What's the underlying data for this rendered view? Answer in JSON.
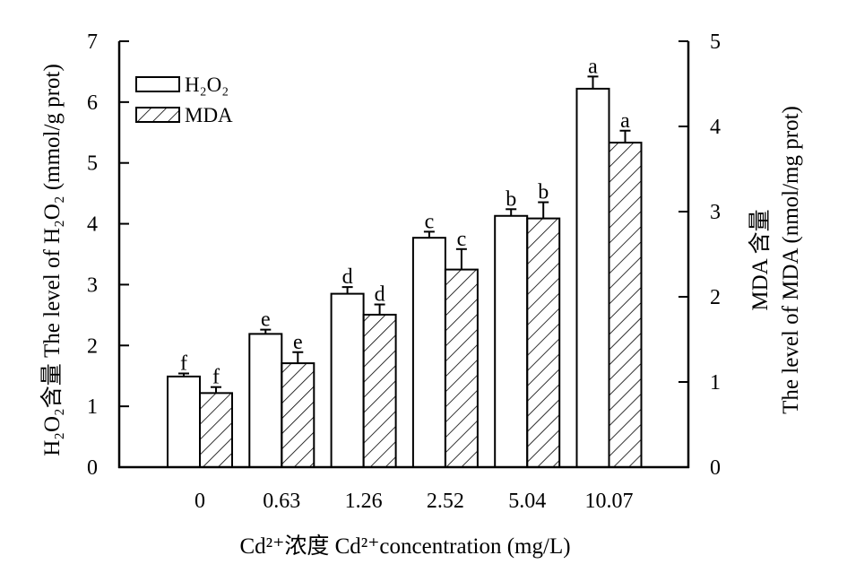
{
  "chart_data": {
    "type": "bar",
    "categories": [
      "0",
      "0.63",
      "1.26",
      "2.52",
      "5.04",
      "10.07"
    ],
    "xlabel": "Cd²⁺浓度 Cd²⁺concentration (mg/L)",
    "ylabel_left": "H₂O₂含量 The level of H₂O₂ (mmol/g prot)",
    "ylabel_right": [
      "MDA 含量",
      "The level of MDA (nmol/mg prot)"
    ],
    "ylim_left": [
      0,
      7
    ],
    "ylim_right": [
      0,
      5
    ],
    "yticks_left": [
      "0",
      "1",
      "2",
      "3",
      "4",
      "5",
      "6",
      "7"
    ],
    "yticks_right": [
      "0",
      "1",
      "2",
      "3",
      "4",
      "5"
    ],
    "legend_position": "top-left",
    "series": [
      {
        "name": "H₂O₂",
        "axis": "left",
        "fill": "plain",
        "values": [
          1.49,
          2.19,
          2.85,
          3.77,
          4.13,
          6.22
        ],
        "errors": [
          0.05,
          0.07,
          0.11,
          0.1,
          0.11,
          0.2
        ],
        "labels": [
          "f",
          "e",
          "d",
          "c",
          "b",
          "a"
        ]
      },
      {
        "name": "MDA",
        "axis": "right",
        "fill": "hatched",
        "values": [
          0.87,
          1.22,
          1.79,
          2.32,
          2.92,
          3.81
        ],
        "errors": [
          0.07,
          0.13,
          0.12,
          0.24,
          0.19,
          0.14
        ],
        "labels": [
          "f",
          "e",
          "d",
          "c",
          "b",
          "a"
        ]
      }
    ]
  }
}
